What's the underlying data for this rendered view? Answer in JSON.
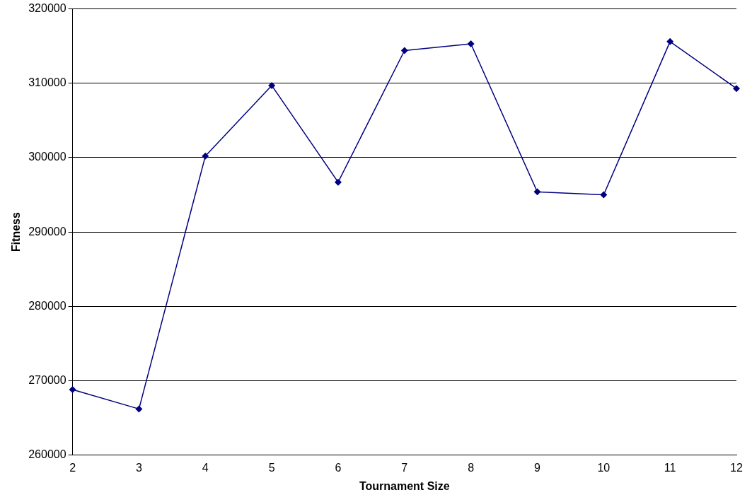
{
  "chart_data": {
    "type": "line",
    "xlabel": "Tournament Size",
    "ylabel": "Fitness",
    "categories": [
      "2",
      "3",
      "4",
      "5",
      "6",
      "7",
      "8",
      "9",
      "10",
      "11",
      "12"
    ],
    "series": [
      {
        "color": "#000080",
        "values": [
          268800,
          266200,
          300200,
          309700,
          296700,
          314400,
          315300,
          295400,
          295000,
          315600,
          309300
        ]
      }
    ],
    "ylim": [
      260000,
      320000
    ],
    "yticks": [
      260000,
      270000,
      280000,
      290000,
      300000,
      310000,
      320000
    ],
    "grid": "y",
    "legend": false,
    "marker": "diamond",
    "line_style": "solid"
  }
}
